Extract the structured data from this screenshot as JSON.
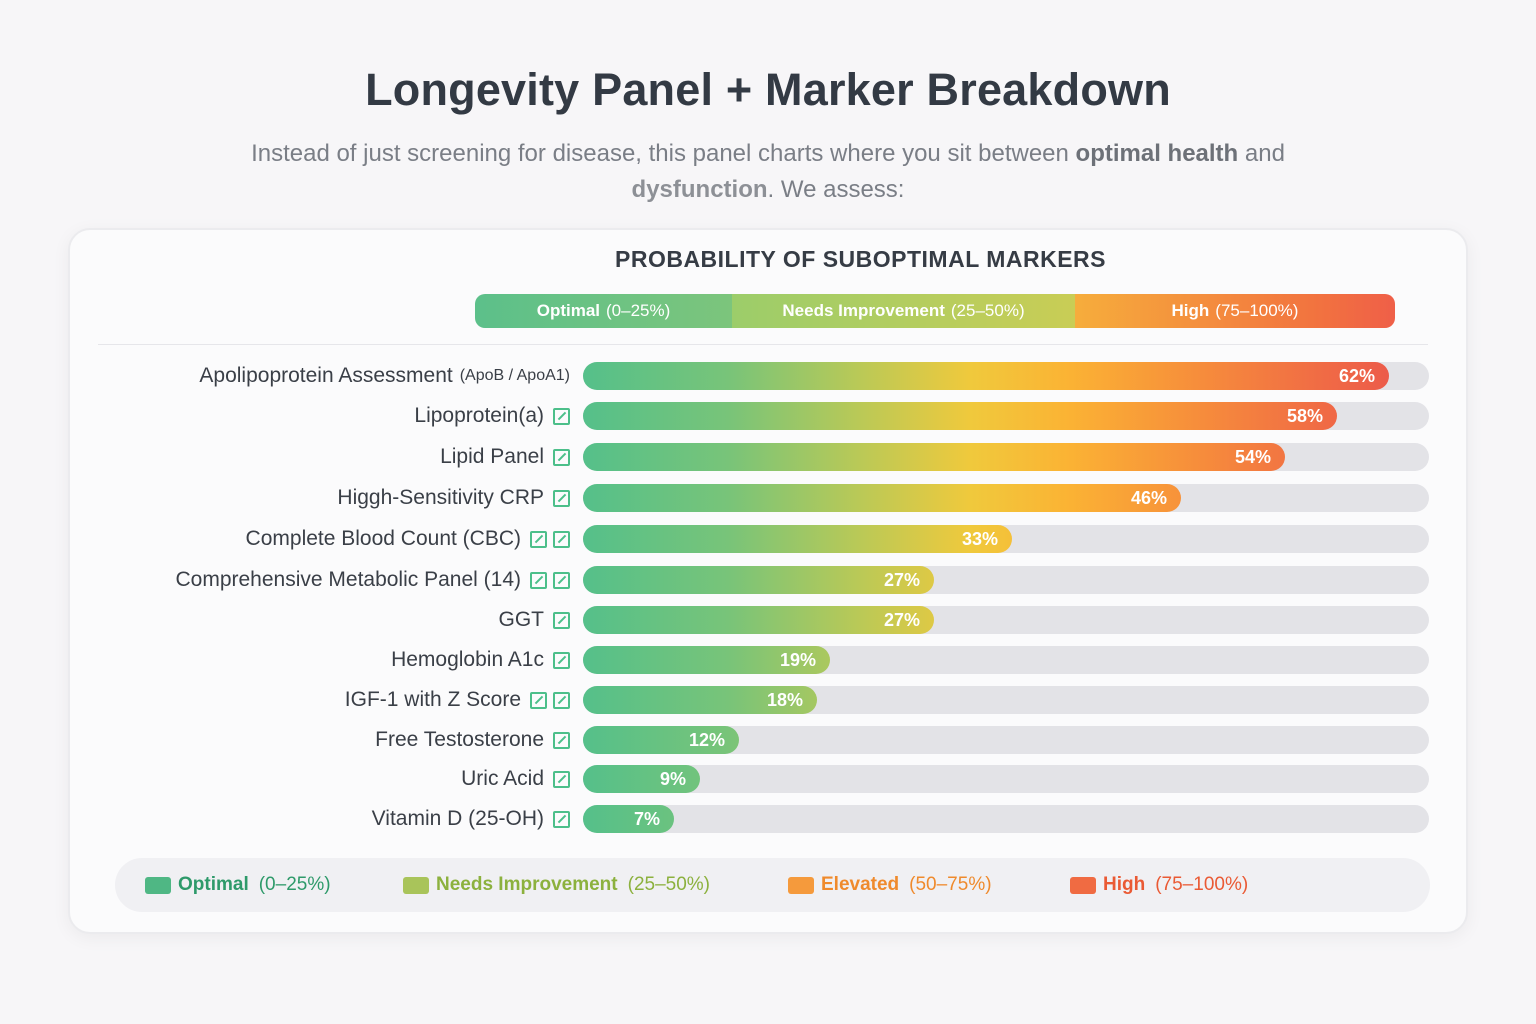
{
  "header": {
    "title": "Longevity Panel + Marker Breakdown",
    "subtitle_part1": "Instead of just screening for disease, this panel charts where you sit between ",
    "subtitle_bold1": "optimal health",
    "subtitle_part2": " and ",
    "subtitle_bold2": "dysfunction",
    "subtitle_part3": ". We assess:"
  },
  "scale": {
    "segments": [
      {
        "label": "Optimal",
        "range": "(0–25%)",
        "color": "#5fc28a"
      },
      {
        "label": "Needs Improvement",
        "range": "(25–50%)",
        "color": "#a3cb5e"
      },
      {
        "label": "High",
        "range": "(75–100%)",
        "color": "#f2733f"
      }
    ]
  },
  "chart_data": {
    "type": "bar",
    "title": "PROBABILITY OF SUBOPTIMAL MARKERS",
    "xlim": [
      0,
      100
    ],
    "categories": [
      "Apolipoprotein Assessment",
      "Lipoprotein(a)",
      "Lipid Panel",
      "Higgh-Sensitivity CRP",
      "Complete Blood Count (CBC)",
      "Comprehensive Metabolic Panel (14)",
      "GGT",
      "Hemoglobin A1c",
      "IGF-1 with Z Score",
      "Free Testosterone",
      "Uric Acid",
      "Vitamin D (25-OH)"
    ],
    "category_subtexts": [
      "(ApoB / ApoA1)",
      "",
      "",
      "",
      "",
      "",
      "",
      "",
      "",
      "",
      "",
      ""
    ],
    "category_icon_counts": [
      0,
      1,
      1,
      1,
      2,
      2,
      1,
      1,
      2,
      1,
      1,
      1
    ],
    "values": [
      62,
      58,
      54,
      46,
      33,
      27,
      27,
      19,
      18,
      12,
      9,
      7
    ],
    "value_labels": [
      "62%",
      "58%",
      "54%",
      "46%",
      "33%",
      "27%",
      "27%",
      "19%",
      "18%",
      "12%",
      "9%",
      "7%"
    ]
  },
  "legend": {
    "items": [
      {
        "label": "Optimal",
        "range": "(0–25%)",
        "color": "#4fb784",
        "text_color": "#2e9a6a"
      },
      {
        "label": "Needs Improvement",
        "range": "(25–50%)",
        "color": "#a9c45a",
        "text_color": "#8cb13e"
      },
      {
        "label": "Elevated",
        "range": "(50–75%)",
        "color": "#f59a3c",
        "text_color": "#ef8a2c"
      },
      {
        "label": "High",
        "range": "(75–100%)",
        "color": "#f06b42",
        "text_color": "#ea5a34"
      }
    ]
  }
}
